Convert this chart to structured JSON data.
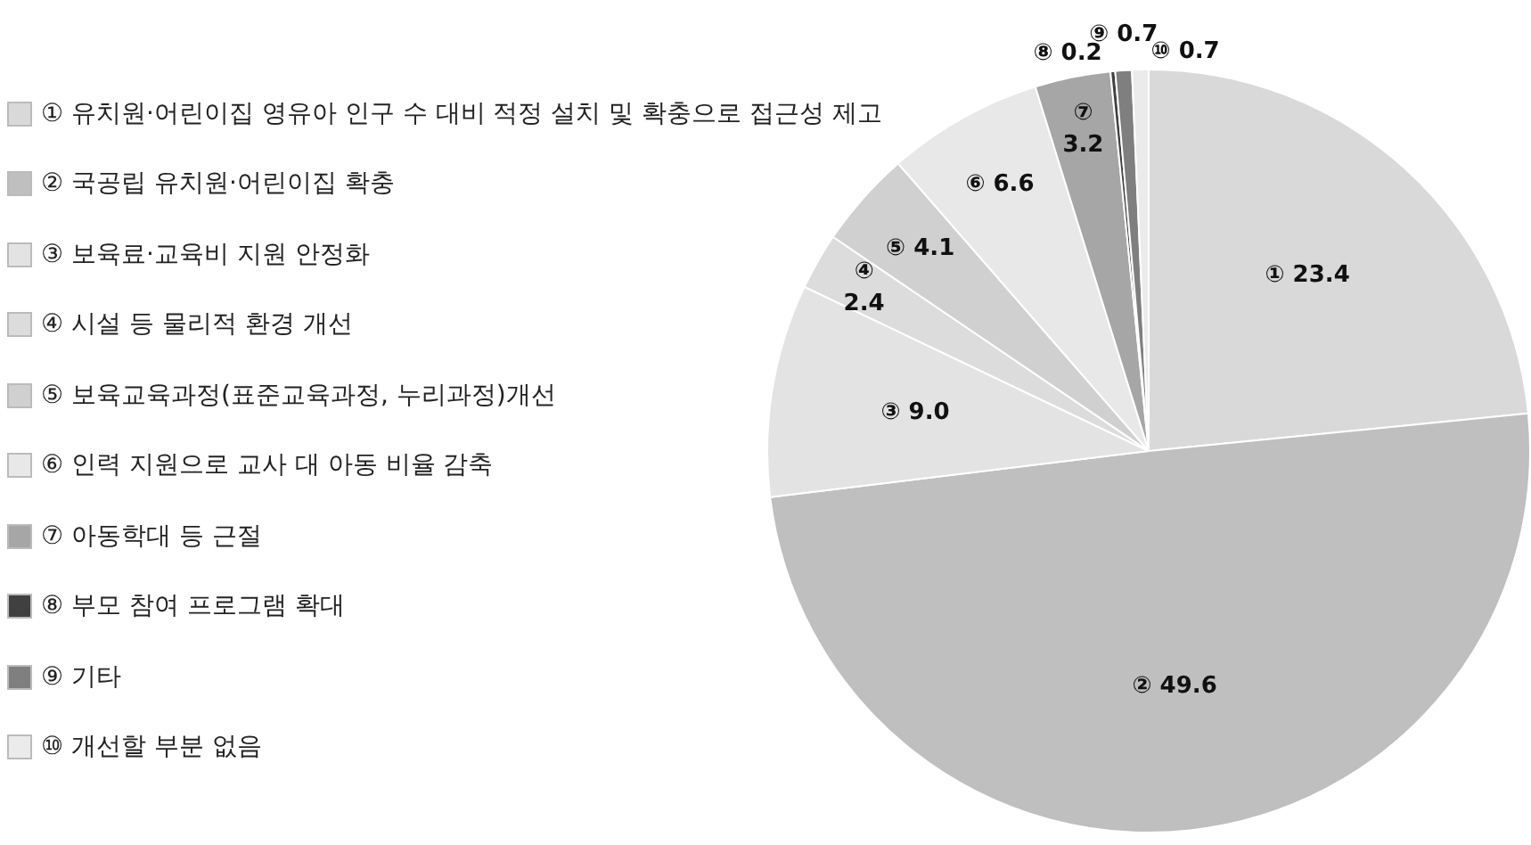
{
  "chart_data": {
    "type": "pie",
    "categories": [
      "① 유치원·어린이집 영유아 인구 수 대비 적정 설치 및 확충으로 접근성 제고",
      "② 국공립 유치원·어린이집 확충",
      "③ 보육료·교육비 지원 안정화",
      "④ 시설 등 물리적 환경 개선",
      "⑤ 보육교육과정(표준교육과정, 누리과정)개선",
      "⑥ 인력 지원으로 교사 대 아동 비율 감축",
      "⑦ 아동학대 등 근절",
      "⑧ 부모 참여 프로그램 확대",
      "⑨ 기타",
      "⑩ 개선할 부분 없음"
    ],
    "values": [
      23.4,
      49.6,
      9.0,
      2.4,
      4.1,
      6.6,
      3.2,
      0.2,
      0.7,
      0.7
    ],
    "value_labels": [
      "① 23.4",
      "② 49.6",
      "③ 9.0",
      "④ 2.4",
      "⑤ 4.1",
      "⑥ 6.6",
      "⑦ 3.2",
      "⑧ 0.2",
      "⑨ 0.7",
      "⑩ 0.7"
    ],
    "colors": [
      "#d9d9d9",
      "#bfbfbf",
      "#e3e3e3",
      "#dcdcdc",
      "#d0d0d0",
      "#e8e8e8",
      "#a6a6a6",
      "#404040",
      "#7f7f7f",
      "#ebebeb"
    ],
    "legend": "left"
  }
}
